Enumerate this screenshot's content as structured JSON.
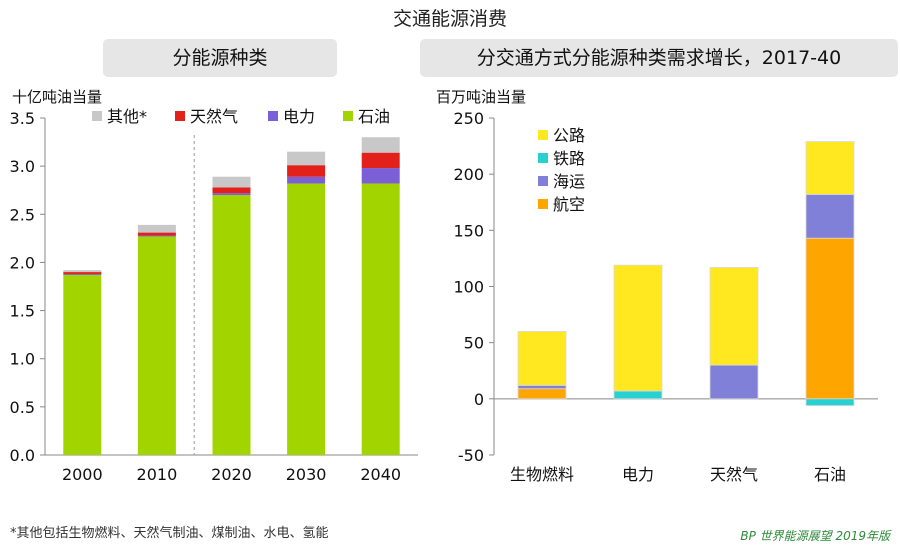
{
  "title": "交通能源消费",
  "footnote": "*其他包括生物燃料、天然气制油、煤制油、水电、氢能",
  "source": "BP 世界能源展望 2019年版",
  "colors": {
    "oil": "#a2d400",
    "electricity": "#7b5fd6",
    "gas": "#e2221a",
    "other": "#c8c8c8",
    "road": "#ffe81f",
    "rail": "#27d1d1",
    "marine": "#8080d8",
    "aviation": "#ffa500",
    "source_green": "#2e8b3a"
  },
  "chart_data": [
    {
      "type": "bar",
      "stacked": true,
      "title": "分能源种类",
      "ylabel": "十亿吨油当量",
      "xlabel": "",
      "categories": [
        "2000",
        "2010",
        "2020",
        "2030",
        "2040"
      ],
      "ylim": [
        0,
        3.5
      ],
      "yticks": [
        "0.0",
        "0.5",
        "1.0",
        "1.5",
        "2.0",
        "2.5",
        "3.0",
        "3.5"
      ],
      "grid": false,
      "legend_position": "top",
      "divider_after_category": "2010",
      "legend": [
        "其他*",
        "天然气",
        "电力",
        "石油"
      ],
      "series": [
        {
          "name": "石油",
          "color_key": "oil",
          "values": [
            1.87,
            2.27,
            2.7,
            2.82,
            2.82
          ]
        },
        {
          "name": "电力",
          "color_key": "electricity",
          "values": [
            0.01,
            0.01,
            0.02,
            0.07,
            0.16
          ]
        },
        {
          "name": "天然气",
          "color_key": "gas",
          "values": [
            0.02,
            0.03,
            0.06,
            0.12,
            0.16
          ]
        },
        {
          "name": "其他*",
          "color_key": "other",
          "values": [
            0.02,
            0.08,
            0.11,
            0.14,
            0.16
          ]
        }
      ]
    },
    {
      "type": "bar",
      "stacked": true,
      "title": "分交通方式分能源种类需求增长，2017-40",
      "ylabel": "百万吨油当量",
      "xlabel": "",
      "categories": [
        "生物燃料",
        "电力",
        "天然气",
        "石油"
      ],
      "ylim": [
        -50,
        250
      ],
      "yticks": [
        "-50",
        "0",
        "50",
        "100",
        "150",
        "200",
        "250"
      ],
      "grid": false,
      "legend_position": "top-left",
      "legend": [
        "公路",
        "铁路",
        "海运",
        "航空"
      ],
      "series": [
        {
          "name": "航空",
          "color_key": "aviation",
          "values": [
            9,
            0,
            0,
            143
          ]
        },
        {
          "name": "海运",
          "color_key": "marine",
          "values": [
            3,
            0,
            30,
            39
          ]
        },
        {
          "name": "铁路",
          "color_key": "rail",
          "values": [
            0,
            7,
            0,
            -6
          ]
        },
        {
          "name": "公路",
          "color_key": "road",
          "values": [
            48,
            112,
            87,
            47
          ]
        }
      ]
    }
  ]
}
